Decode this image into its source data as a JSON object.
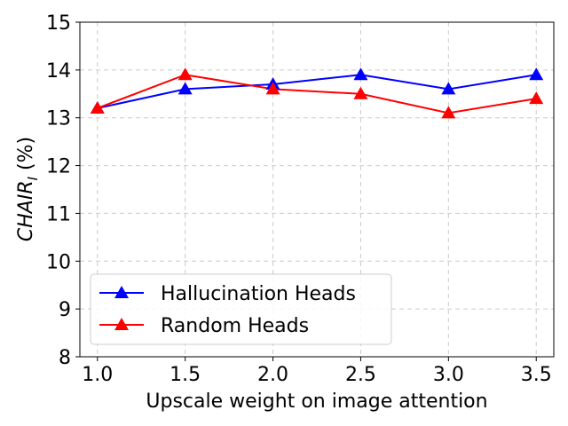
{
  "chart_data": {
    "type": "line",
    "title": "",
    "xlabel": "Upscale weight on image attention",
    "ylabel_main": "CHAIR",
    "ylabel_sub": "I",
    "ylabel_unit": " (%)",
    "x": [
      1.0,
      1.5,
      2.0,
      2.5,
      3.0,
      3.5
    ],
    "x_tick_labels": [
      "1.0",
      "1.5",
      "2.0",
      "2.5",
      "3.0",
      "3.5"
    ],
    "y_ticks": [
      8,
      9,
      10,
      11,
      12,
      13,
      14,
      15
    ],
    "y_tick_labels": [
      "8",
      "9",
      "10",
      "11",
      "12",
      "13",
      "14",
      "15"
    ],
    "xlim": [
      0.9,
      3.6
    ],
    "ylim": [
      8,
      15
    ],
    "grid": true,
    "legend_position": "lower-left",
    "marker": "triangle-up",
    "series": [
      {
        "name": "Hallucination Heads",
        "color": "#0000ff",
        "values": [
          13.2,
          13.6,
          13.7,
          13.9,
          13.6,
          13.9
        ]
      },
      {
        "name": "Random Heads",
        "color": "#ff0000",
        "values": [
          13.2,
          13.9,
          13.6,
          13.5,
          13.1,
          13.4
        ]
      }
    ]
  }
}
